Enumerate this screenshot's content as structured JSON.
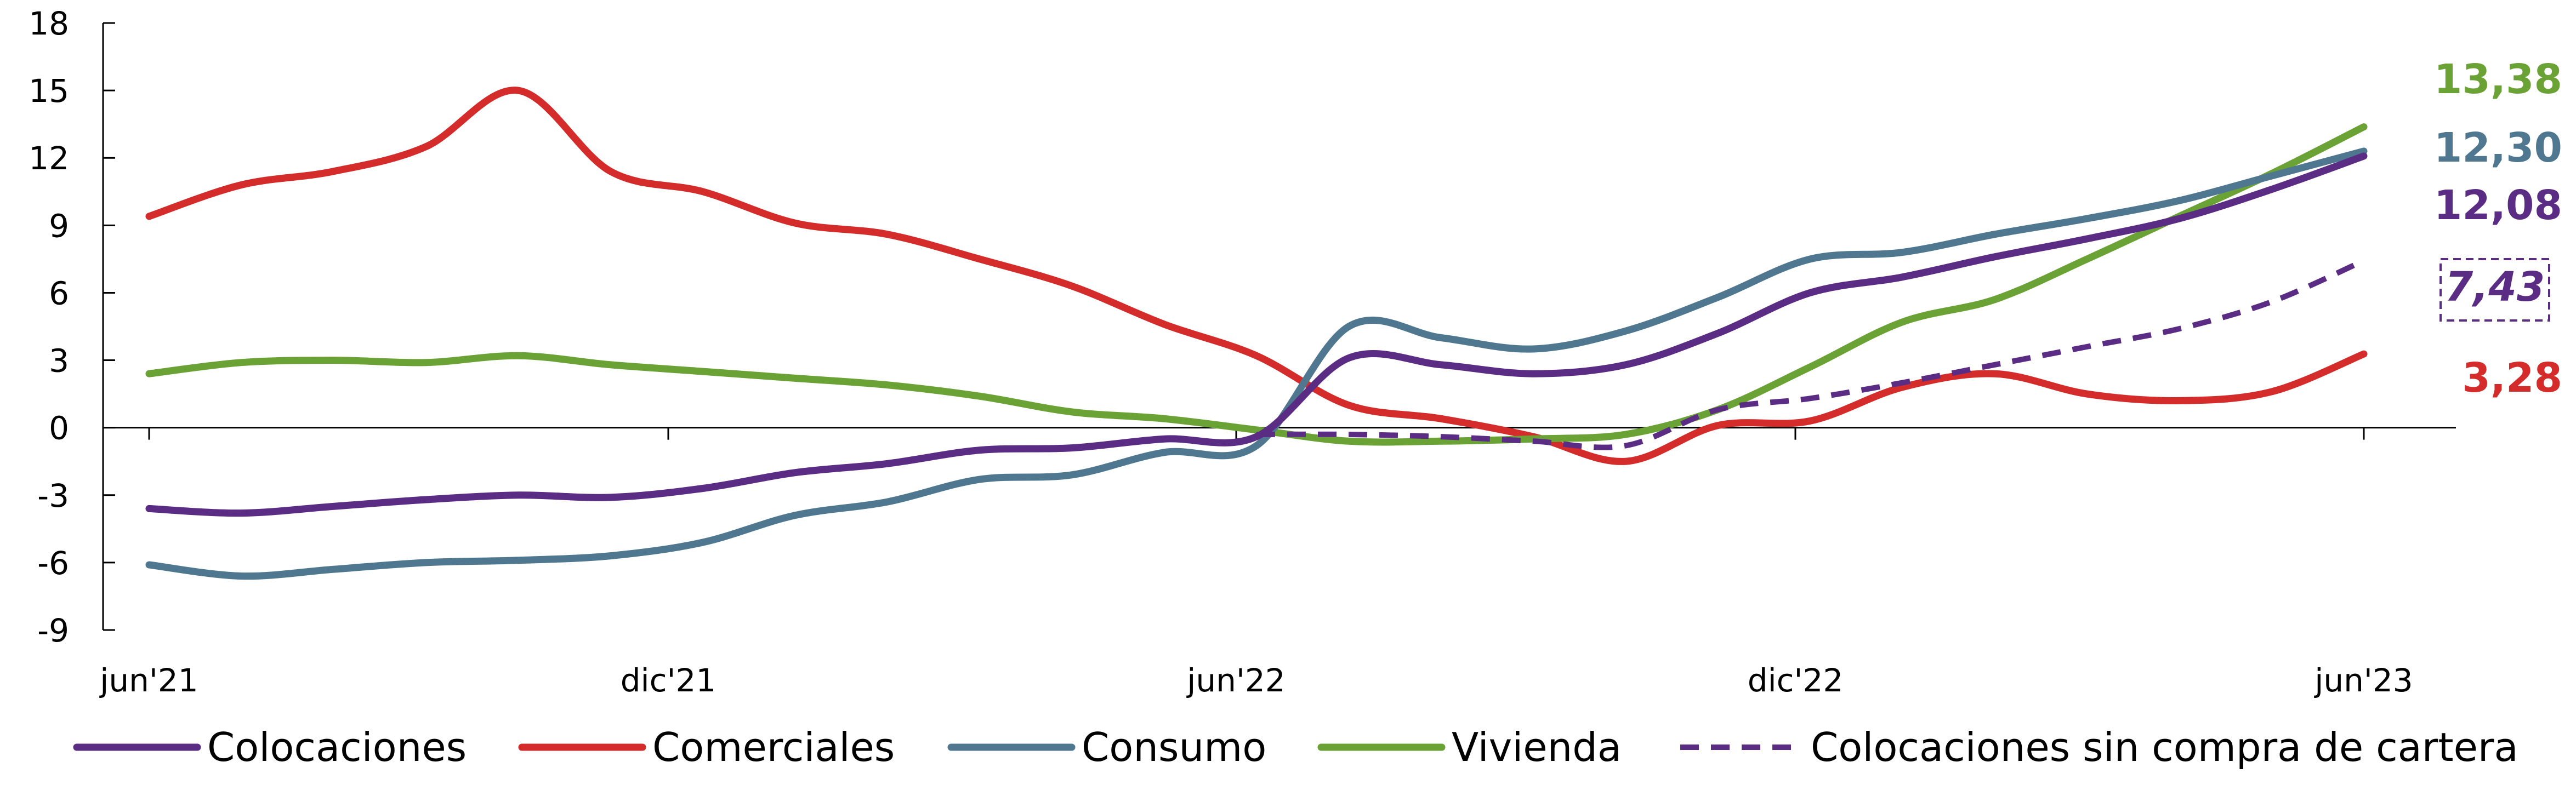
{
  "chart_data": {
    "type": "line",
    "title": "",
    "xlabel": "",
    "ylabel": "",
    "ylim": [
      -9,
      18
    ],
    "yticks": [
      "18",
      "15",
      "12",
      "9",
      "6",
      "3",
      "0",
      "-3",
      "-6",
      "-9"
    ],
    "xticks": [
      "jun'21",
      "dic'21",
      "jun'22",
      "dic'22",
      "jun'23"
    ],
    "x": [
      "jun'21",
      "jul'21",
      "ago'21",
      "sep'21",
      "oct'21",
      "nov'21",
      "dic'21",
      "ene'22",
      "feb'22",
      "mar'22",
      "abr'22",
      "may'22",
      "jun'22",
      "jul'22",
      "ago'22",
      "sep'22",
      "oct'22",
      "nov'22",
      "dic'22",
      "ene'23",
      "feb'23",
      "mar'23",
      "abr'23",
      "may'23",
      "jun'23"
    ],
    "grid": false,
    "legend_position": "bottom",
    "series": [
      {
        "name": "Colocaciones",
        "color": "#5b2c83",
        "dash": "solid",
        "values": [
          -3.6,
          -3.8,
          -3.5,
          -3.2,
          -3.0,
          -3.1,
          -2.7,
          -2.0,
          -1.6,
          -1.0,
          -0.9,
          -0.5,
          -0.4,
          3.1,
          2.8,
          2.4,
          2.8,
          4.2,
          6.0,
          6.7,
          7.6,
          8.4,
          9.3,
          10.6,
          12.08
        ],
        "end_label": "12,08"
      },
      {
        "name": "Comerciales",
        "color": "#d42b2b",
        "dash": "solid",
        "values": [
          9.4,
          10.8,
          11.4,
          12.5,
          15.0,
          11.4,
          10.5,
          9.1,
          8.6,
          7.5,
          6.3,
          4.6,
          3.2,
          1.0,
          0.4,
          -0.4,
          -1.5,
          0.1,
          0.3,
          1.8,
          2.4,
          1.5,
          1.2,
          1.6,
          3.28
        ],
        "end_label": "3,28"
      },
      {
        "name": "Consumo",
        "color": "#4f7890",
        "dash": "solid",
        "values": [
          -6.1,
          -6.6,
          -6.3,
          -6.0,
          -5.9,
          -5.7,
          -5.1,
          -3.9,
          -3.3,
          -2.3,
          -2.1,
          -1.1,
          -0.8,
          4.5,
          4.0,
          3.5,
          4.3,
          5.8,
          7.5,
          7.8,
          8.6,
          9.3,
          10.1,
          11.2,
          12.3
        ],
        "end_label": "12,30"
      },
      {
        "name": "Vivienda",
        "color": "#6aa236",
        "dash": "solid",
        "values": [
          2.4,
          2.9,
          3.0,
          2.9,
          3.2,
          2.8,
          2.5,
          2.2,
          1.9,
          1.4,
          0.7,
          0.4,
          -0.1,
          -0.6,
          -0.6,
          -0.5,
          -0.3,
          0.8,
          2.7,
          4.7,
          5.7,
          7.5,
          9.4,
          11.3,
          13.38
        ],
        "end_label": "13,38"
      },
      {
        "name": "Colocaciones sin compra de cartera",
        "color": "#5b2c83",
        "dash": "dashed",
        "values": [
          null,
          null,
          null,
          null,
          null,
          null,
          null,
          null,
          null,
          null,
          null,
          null,
          -0.3,
          -0.3,
          -0.4,
          -0.6,
          -0.8,
          0.8,
          1.3,
          2.0,
          2.8,
          3.6,
          4.4,
          5.6,
          7.43
        ],
        "end_label": "7,43"
      }
    ]
  }
}
